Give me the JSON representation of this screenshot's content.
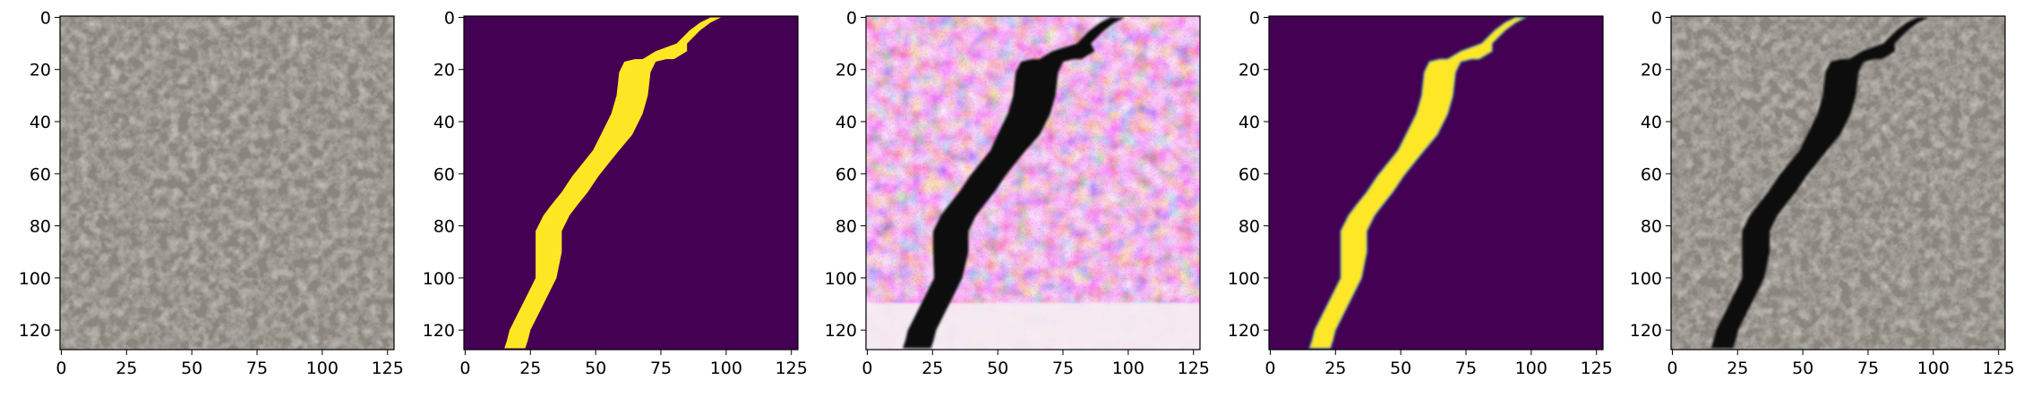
{
  "panels": [
    {
      "name": "concrete-texture-panel",
      "kind": "texture"
    },
    {
      "name": "crack-mask-panel",
      "kind": "mask"
    },
    {
      "name": "generated-crack-panel",
      "kind": "generated"
    },
    {
      "name": "predicted-crack-panel",
      "kind": "mask_soft"
    },
    {
      "name": "blended-crack-panel",
      "kind": "blend"
    }
  ],
  "axes": {
    "x_ticks": [
      "0",
      "25",
      "50",
      "75",
      "100",
      "125"
    ],
    "y_ticks": [
      "0",
      "20",
      "40",
      "60",
      "80",
      "100",
      "120"
    ],
    "x_tick_values": [
      0,
      25,
      50,
      75,
      100,
      125
    ],
    "y_tick_values": [
      0,
      20,
      40,
      60,
      80,
      100,
      120
    ],
    "range": [
      -0.5,
      127.5
    ]
  },
  "colors": {
    "mask_background": "#440154",
    "mask_foreground": "#fde725",
    "texture_base": "#8a857d",
    "crack_dark": "#0b0b0b"
  },
  "crack_path": [
    [
      96,
      0
    ],
    [
      92,
      2
    ],
    [
      88,
      5
    ],
    [
      83,
      10
    ],
    [
      79,
      13
    ],
    [
      74,
      16
    ],
    [
      71,
      16
    ],
    [
      67,
      17
    ],
    [
      65,
      21
    ],
    [
      64,
      30
    ],
    [
      62,
      37
    ],
    [
      58,
      45
    ],
    [
      54,
      51
    ],
    [
      50,
      56
    ],
    [
      46,
      61
    ],
    [
      42,
      67
    ],
    [
      38,
      72
    ],
    [
      35,
      76
    ],
    [
      32,
      82
    ],
    [
      32,
      90
    ],
    [
      31,
      100
    ],
    [
      27,
      108
    ],
    [
      24,
      114
    ],
    [
      21,
      120
    ],
    [
      20,
      124
    ],
    [
      19,
      127
    ]
  ]
}
